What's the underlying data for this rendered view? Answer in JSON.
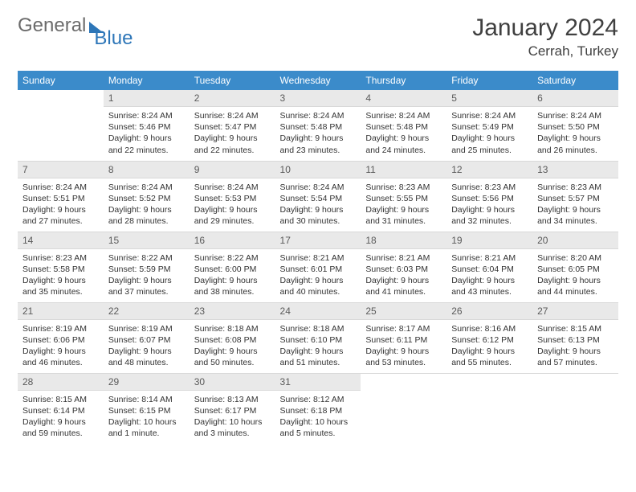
{
  "brand": {
    "part1": "General",
    "part2": "Blue"
  },
  "title": "January 2024",
  "location": "Cerrah, Turkey",
  "colors": {
    "header_bg": "#3b8bca",
    "header_text": "#ffffff",
    "daynum_bg": "#e9e9e9",
    "border": "#d9d9d9",
    "text": "#333333",
    "brand_gray": "#6b6b6b",
    "brand_blue": "#2d76b8"
  },
  "weekdays": [
    "Sunday",
    "Monday",
    "Tuesday",
    "Wednesday",
    "Thursday",
    "Friday",
    "Saturday"
  ],
  "weeks": [
    [
      {
        "n": "",
        "sr": "",
        "ss": "",
        "dl": ""
      },
      {
        "n": "1",
        "sr": "8:24 AM",
        "ss": "5:46 PM",
        "dl": "9 hours and 22 minutes."
      },
      {
        "n": "2",
        "sr": "8:24 AM",
        "ss": "5:47 PM",
        "dl": "9 hours and 22 minutes."
      },
      {
        "n": "3",
        "sr": "8:24 AM",
        "ss": "5:48 PM",
        "dl": "9 hours and 23 minutes."
      },
      {
        "n": "4",
        "sr": "8:24 AM",
        "ss": "5:48 PM",
        "dl": "9 hours and 24 minutes."
      },
      {
        "n": "5",
        "sr": "8:24 AM",
        "ss": "5:49 PM",
        "dl": "9 hours and 25 minutes."
      },
      {
        "n": "6",
        "sr": "8:24 AM",
        "ss": "5:50 PM",
        "dl": "9 hours and 26 minutes."
      }
    ],
    [
      {
        "n": "7",
        "sr": "8:24 AM",
        "ss": "5:51 PM",
        "dl": "9 hours and 27 minutes."
      },
      {
        "n": "8",
        "sr": "8:24 AM",
        "ss": "5:52 PM",
        "dl": "9 hours and 28 minutes."
      },
      {
        "n": "9",
        "sr": "8:24 AM",
        "ss": "5:53 PM",
        "dl": "9 hours and 29 minutes."
      },
      {
        "n": "10",
        "sr": "8:24 AM",
        "ss": "5:54 PM",
        "dl": "9 hours and 30 minutes."
      },
      {
        "n": "11",
        "sr": "8:23 AM",
        "ss": "5:55 PM",
        "dl": "9 hours and 31 minutes."
      },
      {
        "n": "12",
        "sr": "8:23 AM",
        "ss": "5:56 PM",
        "dl": "9 hours and 32 minutes."
      },
      {
        "n": "13",
        "sr": "8:23 AM",
        "ss": "5:57 PM",
        "dl": "9 hours and 34 minutes."
      }
    ],
    [
      {
        "n": "14",
        "sr": "8:23 AM",
        "ss": "5:58 PM",
        "dl": "9 hours and 35 minutes."
      },
      {
        "n": "15",
        "sr": "8:22 AM",
        "ss": "5:59 PM",
        "dl": "9 hours and 37 minutes."
      },
      {
        "n": "16",
        "sr": "8:22 AM",
        "ss": "6:00 PM",
        "dl": "9 hours and 38 minutes."
      },
      {
        "n": "17",
        "sr": "8:21 AM",
        "ss": "6:01 PM",
        "dl": "9 hours and 40 minutes."
      },
      {
        "n": "18",
        "sr": "8:21 AM",
        "ss": "6:03 PM",
        "dl": "9 hours and 41 minutes."
      },
      {
        "n": "19",
        "sr": "8:21 AM",
        "ss": "6:04 PM",
        "dl": "9 hours and 43 minutes."
      },
      {
        "n": "20",
        "sr": "8:20 AM",
        "ss": "6:05 PM",
        "dl": "9 hours and 44 minutes."
      }
    ],
    [
      {
        "n": "21",
        "sr": "8:19 AM",
        "ss": "6:06 PM",
        "dl": "9 hours and 46 minutes."
      },
      {
        "n": "22",
        "sr": "8:19 AM",
        "ss": "6:07 PM",
        "dl": "9 hours and 48 minutes."
      },
      {
        "n": "23",
        "sr": "8:18 AM",
        "ss": "6:08 PM",
        "dl": "9 hours and 50 minutes."
      },
      {
        "n": "24",
        "sr": "8:18 AM",
        "ss": "6:10 PM",
        "dl": "9 hours and 51 minutes."
      },
      {
        "n": "25",
        "sr": "8:17 AM",
        "ss": "6:11 PM",
        "dl": "9 hours and 53 minutes."
      },
      {
        "n": "26",
        "sr": "8:16 AM",
        "ss": "6:12 PM",
        "dl": "9 hours and 55 minutes."
      },
      {
        "n": "27",
        "sr": "8:15 AM",
        "ss": "6:13 PM",
        "dl": "9 hours and 57 minutes."
      }
    ],
    [
      {
        "n": "28",
        "sr": "8:15 AM",
        "ss": "6:14 PM",
        "dl": "9 hours and 59 minutes."
      },
      {
        "n": "29",
        "sr": "8:14 AM",
        "ss": "6:15 PM",
        "dl": "10 hours and 1 minute."
      },
      {
        "n": "30",
        "sr": "8:13 AM",
        "ss": "6:17 PM",
        "dl": "10 hours and 3 minutes."
      },
      {
        "n": "31",
        "sr": "8:12 AM",
        "ss": "6:18 PM",
        "dl": "10 hours and 5 minutes."
      },
      {
        "n": "",
        "sr": "",
        "ss": "",
        "dl": ""
      },
      {
        "n": "",
        "sr": "",
        "ss": "",
        "dl": ""
      },
      {
        "n": "",
        "sr": "",
        "ss": "",
        "dl": ""
      }
    ]
  ],
  "labels": {
    "sunrise": "Sunrise: ",
    "sunset": "Sunset: ",
    "daylight": "Daylight: "
  }
}
